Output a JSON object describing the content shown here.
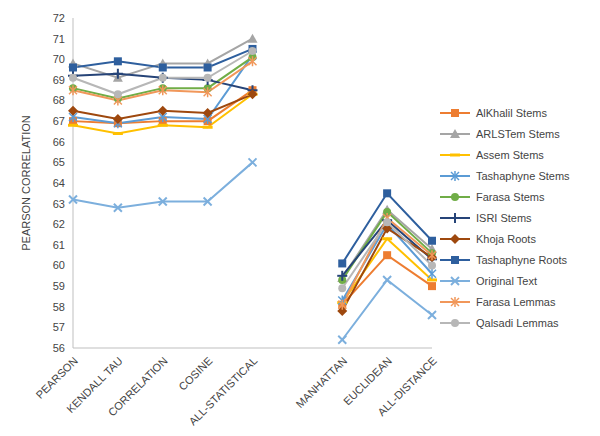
{
  "chart_data": {
    "type": "line",
    "y_label": "PEARSON CORRELATION",
    "categories": [
      "PEARSON",
      "KENDALL TAU",
      "CORRELATION",
      "COSINE",
      "ALL-STATISTICAL",
      null,
      "MANHATTAN",
      "EUCLIDEAN",
      "ALL-DISTANCE"
    ],
    "ylim": [
      56,
      72
    ],
    "yticks": [
      56,
      57,
      58,
      59,
      60,
      61,
      62,
      63,
      64,
      65,
      66,
      67,
      68,
      69,
      70,
      71,
      72
    ],
    "grid": false,
    "legend": "right",
    "series": [
      {
        "name": "AlKhalil Stems",
        "color": "#ED7D31",
        "marker": "square",
        "values": [
          67.0,
          66.9,
          67.0,
          67.0,
          68.5,
          null,
          58.1,
          60.5,
          59.0
        ]
      },
      {
        "name": "ARLSTem  Stems",
        "color": "#A5A5A5",
        "marker": "triangle",
        "values": [
          69.8,
          69.1,
          69.8,
          69.8,
          71.0,
          null,
          59.4,
          62.7,
          60.8
        ]
      },
      {
        "name": "Assem Stems",
        "color": "#FFC000",
        "marker": "dash",
        "values": [
          66.8,
          66.4,
          66.8,
          66.7,
          68.3,
          null,
          58.2,
          61.3,
          59.3
        ]
      },
      {
        "name": "Tashaphyne Stems",
        "color": "#5B9BD5",
        "marker": "asterisk",
        "values": [
          67.2,
          66.9,
          67.2,
          67.1,
          70.2,
          null,
          58.3,
          62.0,
          59.6
        ]
      },
      {
        "name": "Farasa Stems",
        "color": "#70AD47",
        "marker": "circle",
        "values": [
          68.6,
          68.1,
          68.6,
          68.6,
          70.1,
          null,
          59.3,
          62.6,
          60.6
        ]
      },
      {
        "name": "ISRI Stems",
        "color": "#264478",
        "marker": "plus",
        "values": [
          69.2,
          69.3,
          69.1,
          69.0,
          68.5,
          null,
          59.5,
          62.2,
          60.3
        ]
      },
      {
        "name": "Khoja Roots",
        "color": "#9E480E",
        "marker": "diamond",
        "values": [
          67.5,
          67.1,
          67.5,
          67.4,
          68.3,
          null,
          57.8,
          61.8,
          60.4
        ]
      },
      {
        "name": "Tashaphyne Roots",
        "color": "#2E5F9E",
        "marker": "square",
        "values": [
          69.6,
          69.9,
          69.6,
          69.6,
          70.5,
          null,
          60.1,
          63.5,
          61.2
        ]
      },
      {
        "name": "Original Text",
        "color": "#7CAFDD",
        "marker": "x",
        "values": [
          63.2,
          62.8,
          63.1,
          63.1,
          65.0,
          null,
          56.4,
          59.3,
          57.6
        ]
      },
      {
        "name": "Farasa Lemmas",
        "color": "#F1975A",
        "marker": "asterisk",
        "values": [
          68.5,
          68.0,
          68.5,
          68.4,
          69.9,
          null,
          58.1,
          62.3,
          60.5
        ]
      },
      {
        "name": "Qalsadi Lemmas",
        "color": "#B7B7B7",
        "marker": "circle",
        "values": [
          69.1,
          68.3,
          69.1,
          69.1,
          70.4,
          null,
          58.9,
          62.1,
          60.0
        ]
      }
    ]
  }
}
